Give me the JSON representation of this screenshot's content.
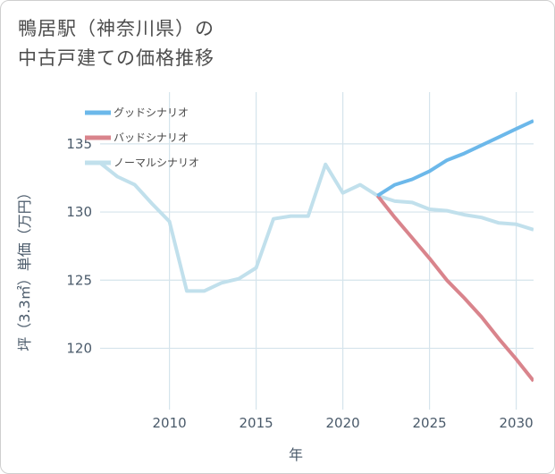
{
  "title_line1": "鴨居駅（神奈川県）の",
  "title_line2": "中古戸建ての価格推移",
  "chart_data": {
    "type": "line",
    "title": "鴨居駅（神奈川県）の中古戸建ての価格推移",
    "xlabel": "年",
    "ylabel": "坪（3.3㎡）単価（万円）",
    "xlim": [
      2006,
      2031
    ],
    "ylim": [
      115.5,
      138.8
    ],
    "xticks": [
      2010,
      2015,
      2020,
      2025,
      2030
    ],
    "yticks": [
      120,
      125,
      130,
      135
    ],
    "grid": true,
    "legend_position": "top-left",
    "series": [
      {
        "name": "グッドシナリオ",
        "color": "#6cb8ea",
        "x": [
          2022,
          2023,
          2024,
          2025,
          2026,
          2027,
          2028,
          2029,
          2030,
          2031
        ],
        "y": [
          131.2,
          132.0,
          132.4,
          133.0,
          133.8,
          134.3,
          134.9,
          135.5,
          136.1,
          136.7
        ]
      },
      {
        "name": "バッドシナリオ",
        "color": "#d9848c",
        "x": [
          2022,
          2023,
          2024,
          2025,
          2026,
          2027,
          2028,
          2029,
          2030,
          2031
        ],
        "y": [
          131.2,
          129.6,
          128.1,
          126.6,
          125.0,
          123.7,
          122.3,
          120.7,
          119.2,
          117.6
        ]
      },
      {
        "name": "ノーマルシナリオ",
        "color": "#c1e0ec",
        "x": [
          2006,
          2007,
          2008,
          2009,
          2010,
          2011,
          2012,
          2013,
          2014,
          2015,
          2016,
          2017,
          2018,
          2019,
          2020,
          2021,
          2022,
          2023,
          2024,
          2025,
          2026,
          2027,
          2028,
          2029,
          2030,
          2031
        ],
        "y": [
          133.6,
          132.6,
          132.0,
          130.6,
          129.3,
          124.2,
          124.2,
          124.8,
          125.1,
          125.9,
          129.5,
          129.7,
          129.7,
          133.5,
          131.4,
          132.0,
          131.2,
          130.8,
          130.7,
          130.2,
          130.1,
          129.8,
          129.6,
          129.2,
          129.1,
          128.7
        ]
      }
    ]
  }
}
